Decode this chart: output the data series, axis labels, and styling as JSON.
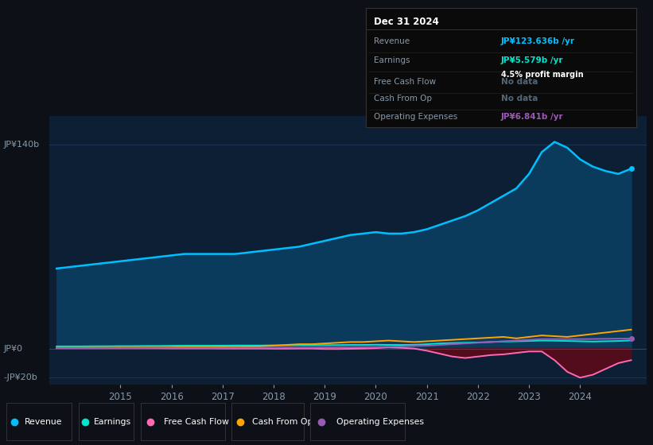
{
  "bg_color": "#0d1117",
  "chart_bg": "#0d1f35",
  "ylabel_top": "JP¥140b",
  "ylabel_zero": "JP¥0",
  "ylabel_neg": "-JP¥20b",
  "ylim": [
    -25,
    160
  ],
  "x_years": [
    2013.75,
    2014.0,
    2014.25,
    2014.5,
    2014.75,
    2015.0,
    2015.25,
    2015.5,
    2015.75,
    2016.0,
    2016.25,
    2016.5,
    2016.75,
    2017.0,
    2017.25,
    2017.5,
    2017.75,
    2018.0,
    2018.25,
    2018.5,
    2018.75,
    2019.0,
    2019.25,
    2019.5,
    2019.75,
    2020.0,
    2020.25,
    2020.5,
    2020.75,
    2021.0,
    2021.25,
    2021.5,
    2021.75,
    2022.0,
    2022.25,
    2022.5,
    2022.75,
    2023.0,
    2023.25,
    2023.5,
    2023.75,
    2024.0,
    2024.25,
    2024.5,
    2024.75,
    2025.0
  ],
  "revenue": [
    55,
    56,
    57,
    58,
    59,
    60,
    61,
    62,
    63,
    64,
    65,
    65,
    65,
    65,
    65,
    66,
    67,
    68,
    69,
    70,
    72,
    74,
    76,
    78,
    79,
    80,
    79,
    79,
    80,
    82,
    85,
    88,
    91,
    95,
    100,
    105,
    110,
    120,
    135,
    142,
    138,
    130,
    125,
    122,
    120,
    123.6
  ],
  "earnings": [
    1.5,
    1.5,
    1.5,
    1.6,
    1.6,
    1.7,
    1.7,
    1.8,
    1.8,
    1.9,
    2.0,
    2.0,
    2.0,
    2.0,
    2.1,
    2.1,
    2.1,
    2.2,
    2.2,
    2.3,
    2.3,
    2.4,
    2.4,
    2.5,
    2.5,
    2.6,
    2.5,
    2.5,
    2.6,
    3.0,
    3.5,
    3.8,
    4.0,
    4.2,
    4.5,
    4.8,
    5.0,
    5.2,
    5.5,
    5.4,
    5.2,
    5.0,
    4.8,
    5.0,
    5.2,
    5.579
  ],
  "free_cash_flow": [
    0.2,
    0.2,
    0.2,
    0.2,
    0.2,
    0.2,
    0.2,
    0.2,
    0.2,
    0.1,
    0.1,
    0.1,
    0.1,
    0.0,
    0.0,
    0.0,
    0.0,
    -0.1,
    -0.1,
    0.0,
    0.0,
    -0.3,
    -0.3,
    -0.2,
    0.0,
    0.3,
    0.8,
    0.5,
    0.0,
    -1.5,
    -3.5,
    -5.5,
    -6.5,
    -5.5,
    -4.5,
    -4.0,
    -3.0,
    -2.0,
    -2.0,
    -8.0,
    -16.0,
    -20.0,
    -18.0,
    -14.0,
    -10.0,
    -8.0
  ],
  "cash_from_op": [
    0.5,
    0.5,
    0.5,
    0.6,
    0.6,
    0.7,
    0.7,
    0.7,
    0.7,
    0.8,
    1.0,
    1.0,
    1.0,
    1.2,
    1.3,
    1.4,
    1.5,
    2.0,
    2.5,
    3.0,
    3.0,
    3.5,
    4.0,
    4.5,
    4.5,
    5.0,
    5.5,
    5.0,
    4.5,
    5.0,
    5.5,
    6.0,
    6.5,
    7.0,
    7.5,
    8.0,
    7.0,
    8.0,
    9.0,
    8.5,
    8.0,
    9.0,
    10.0,
    11.0,
    12.0,
    13.0
  ],
  "op_expenses": [
    0.3,
    0.3,
    0.3,
    0.3,
    0.4,
    0.4,
    0.4,
    0.4,
    0.5,
    0.5,
    0.5,
    0.5,
    0.5,
    0.5,
    0.6,
    0.6,
    0.6,
    0.6,
    0.7,
    0.7,
    0.7,
    0.8,
    0.8,
    0.8,
    0.9,
    1.0,
    1.2,
    1.5,
    1.8,
    2.0,
    2.5,
    3.0,
    3.5,
    4.0,
    4.5,
    5.0,
    5.5,
    6.0,
    6.5,
    6.5,
    6.5,
    6.5,
    6.6,
    6.7,
    6.8,
    6.841
  ],
  "revenue_color": "#00bfff",
  "revenue_fill": "#0a3a5c",
  "earnings_color": "#00e5cc",
  "free_cash_flow_color": "#ff69b4",
  "free_cash_flow_fill": "#5a0a1a",
  "cash_from_op_color": "#ffa500",
  "op_expenses_color": "#9b59b6",
  "grid_color": "#1e3a5a",
  "text_color": "#8899aa",
  "info_box": {
    "title": "Dec 31 2024",
    "rows": [
      {
        "label": "Revenue",
        "value": "JP¥123.636b /yr",
        "value_color": "#00bfff",
        "sub": null
      },
      {
        "label": "Earnings",
        "value": "JP¥5.579b /yr",
        "value_color": "#00e5cc",
        "sub": "4.5% profit margin"
      },
      {
        "label": "Free Cash Flow",
        "value": "No data",
        "value_color": "#556677",
        "sub": null
      },
      {
        "label": "Cash From Op",
        "value": "No data",
        "value_color": "#556677",
        "sub": null
      },
      {
        "label": "Operating Expenses",
        "value": "JP¥6.841b /yr",
        "value_color": "#9b59b6",
        "sub": null
      }
    ]
  },
  "legend": [
    {
      "label": "Revenue",
      "color": "#00bfff"
    },
    {
      "label": "Earnings",
      "color": "#00e5cc"
    },
    {
      "label": "Free Cash Flow",
      "color": "#ff69b4"
    },
    {
      "label": "Cash From Op",
      "color": "#ffa500"
    },
    {
      "label": "Operating Expenses",
      "color": "#9b59b6"
    }
  ],
  "xticks": [
    2015,
    2016,
    2017,
    2018,
    2019,
    2020,
    2021,
    2022,
    2023,
    2024
  ],
  "xlim": [
    2013.6,
    2025.3
  ]
}
